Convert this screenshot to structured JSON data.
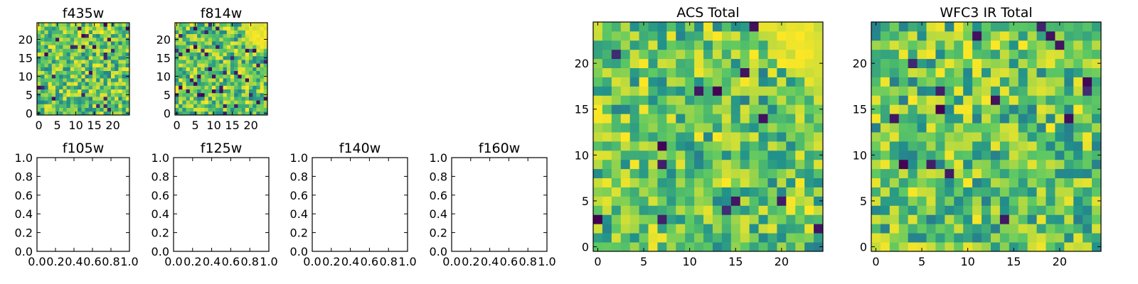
{
  "colormap": [
    "#440154",
    "#3b528b",
    "#21918c",
    "#5ec962",
    "#fde725"
  ],
  "chart_data": [
    {
      "type": "heatmap",
      "title": "f435w",
      "xlim": [
        -0.5,
        24.5
      ],
      "ylim": [
        -0.5,
        24.5
      ],
      "xticks": [
        0,
        5,
        10,
        15,
        20
      ],
      "yticks": [
        0,
        5,
        10,
        15,
        20
      ],
      "xticklabels": [
        "0",
        "5",
        "10",
        "15",
        "20"
      ],
      "yticklabels": [
        "0",
        "5",
        "10",
        "15",
        "20"
      ],
      "grid_size": [
        25,
        25
      ],
      "value_range": [
        0,
        1
      ],
      "seed": 17,
      "dark_fraction": 0.05,
      "bright_corner": false,
      "values": []
    },
    {
      "type": "heatmap",
      "title": "f814w",
      "xlim": [
        -0.5,
        24.5
      ],
      "ylim": [
        -0.5,
        24.5
      ],
      "xticks": [
        0,
        5,
        10,
        15,
        20
      ],
      "yticks": [
        0,
        5,
        10,
        15,
        20
      ],
      "xticklabels": [
        "0",
        "5",
        "10",
        "15",
        "20"
      ],
      "yticklabels": [
        "0",
        "5",
        "10",
        "15",
        "20"
      ],
      "grid_size": [
        25,
        25
      ],
      "value_range": [
        0,
        1
      ],
      "seed": 29,
      "dark_fraction": 0.08,
      "bright_corner": true,
      "values": []
    },
    {
      "type": "empty",
      "title": "f105w",
      "xlim": [
        0,
        1
      ],
      "ylim": [
        0,
        1
      ],
      "xticks": [
        0,
        0.2,
        0.4,
        0.6,
        0.8,
        1
      ],
      "yticks": [
        0,
        0.2,
        0.4,
        0.6,
        0.8,
        1
      ],
      "xticklabels": [
        "0.0",
        "0.2",
        "0.4",
        "0.6",
        "0.8",
        "1.0"
      ],
      "yticklabels": [
        "0.0",
        "0.2",
        "0.4",
        "0.6",
        "0.8",
        "1.0"
      ]
    },
    {
      "type": "empty",
      "title": "f125w",
      "xlim": [
        0,
        1
      ],
      "ylim": [
        0,
        1
      ],
      "xticks": [
        0,
        0.2,
        0.4,
        0.6,
        0.8,
        1
      ],
      "yticks": [
        0,
        0.2,
        0.4,
        0.6,
        0.8,
        1
      ],
      "xticklabels": [
        "0.0",
        "0.2",
        "0.4",
        "0.6",
        "0.8",
        "1.0"
      ],
      "yticklabels": [
        "0.0",
        "0.2",
        "0.4",
        "0.6",
        "0.8",
        "1.0"
      ]
    },
    {
      "type": "empty",
      "title": "f140w",
      "xlim": [
        0,
        1
      ],
      "ylim": [
        0,
        1
      ],
      "xticks": [
        0,
        0.2,
        0.4,
        0.6,
        0.8,
        1
      ],
      "yticks": [
        0,
        0.2,
        0.4,
        0.6,
        0.8,
        1
      ],
      "xticklabels": [
        "0.0",
        "0.2",
        "0.4",
        "0.6",
        "0.8",
        "1.0"
      ],
      "yticklabels": [
        "0.0",
        "0.2",
        "0.4",
        "0.6",
        "0.8",
        "1.0"
      ]
    },
    {
      "type": "empty",
      "title": "f160w",
      "xlim": [
        0,
        1
      ],
      "ylim": [
        0,
        1
      ],
      "xticks": [
        0,
        0.2,
        0.4,
        0.6,
        0.8,
        1
      ],
      "yticks": [
        0,
        0.2,
        0.4,
        0.6,
        0.8,
        1
      ],
      "xticklabels": [
        "0.0",
        "0.2",
        "0.4",
        "0.6",
        "0.8",
        "1.0"
      ],
      "yticklabels": [
        "0.0",
        "0.2",
        "0.4",
        "0.6",
        "0.8",
        "1.0"
      ]
    },
    {
      "type": "heatmap",
      "title": "ACS Total",
      "xlim": [
        -0.5,
        24.5
      ],
      "ylim": [
        -0.5,
        24.5
      ],
      "xticks": [
        0,
        5,
        10,
        15,
        20
      ],
      "yticks": [
        0,
        5,
        10,
        15,
        20
      ],
      "xticklabels": [
        "0",
        "5",
        "10",
        "15",
        "20"
      ],
      "yticklabels": [
        "0",
        "5",
        "10",
        "15",
        "20"
      ],
      "grid_size": [
        25,
        25
      ],
      "value_range": [
        0,
        1
      ],
      "seed": 41,
      "dark_fraction": 0.03,
      "bright_corner": true,
      "values": []
    },
    {
      "type": "heatmap",
      "title": "WFC3 IR Total",
      "xlim": [
        -0.5,
        24.5
      ],
      "ylim": [
        -0.5,
        24.5
      ],
      "xticks": [
        0,
        5,
        10,
        15,
        20
      ],
      "yticks": [
        0,
        5,
        10,
        15,
        20
      ],
      "xticklabels": [
        "0",
        "5",
        "10",
        "15",
        "20"
      ],
      "yticklabels": [
        "0",
        "5",
        "10",
        "15",
        "20"
      ],
      "grid_size": [
        25,
        25
      ],
      "value_range": [
        0,
        1
      ],
      "seed": 53,
      "dark_fraction": 0.025,
      "bright_corner": false,
      "values": []
    }
  ]
}
